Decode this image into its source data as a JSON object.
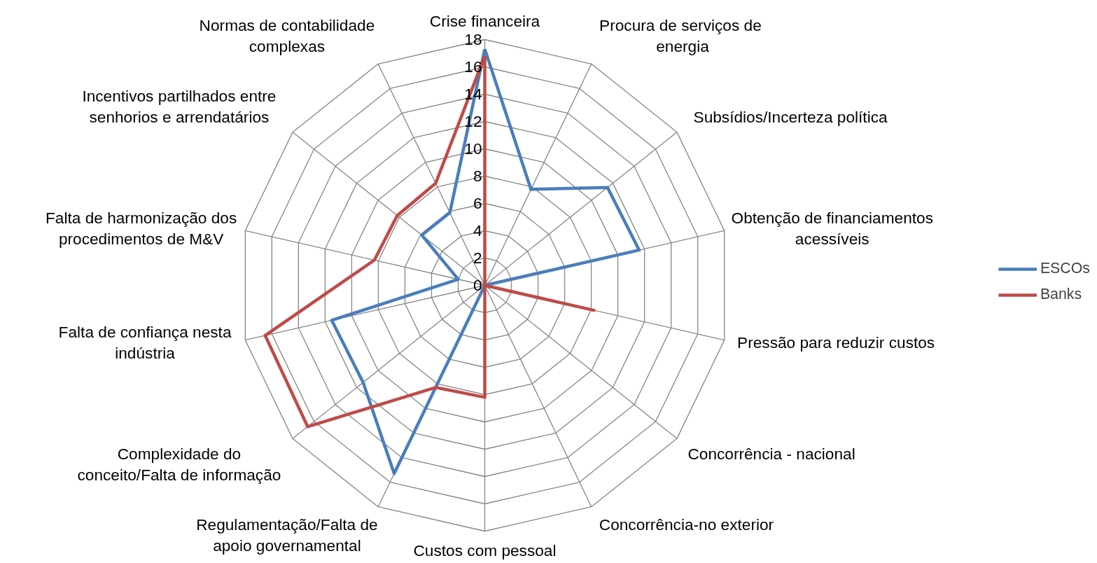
{
  "chart_data": {
    "type": "radar",
    "categories": [
      "Crise financeira",
      "Procura  de serviços de energia",
      "Subsídios/Incerteza política",
      "Obtenção de financiamentos acessíveis",
      "Pressão para reduzir custos",
      "Concorrência - nacional",
      "Concorrência-no exterior",
      "Custos com pessoal",
      "Regulamentação/Falta de apoio governamental",
      "Complexidade do conceito/Falta de informação",
      "Falta de confiança nesta indústria",
      "Falta de harmonização dos procedimentos de M&V",
      "Incentivos partilhados entre senhorios e arrendatários",
      "Normas de contabilidade complexas"
    ],
    "series": [
      {
        "name": "ESCOs",
        "color": "#4a7ebb",
        "values": [
          17.3,
          7.8,
          11.5,
          11.6,
          0,
          0,
          0,
          0,
          15.3,
          11.4,
          11.5,
          2,
          5.9,
          5.9
        ]
      },
      {
        "name": "Banks",
        "color": "#be4b48",
        "values": [
          16.8,
          0,
          0,
          0,
          8.2,
          0,
          0,
          8.2,
          8.3,
          16.6,
          16.5,
          8.3,
          8.2,
          8.3
        ]
      }
    ],
    "ylim": [
      0,
      18
    ],
    "yticks": [
      0,
      2,
      4,
      6,
      8,
      10,
      12,
      14,
      16,
      18
    ],
    "legend": "right",
    "line_style": "solid",
    "marker": "none"
  }
}
